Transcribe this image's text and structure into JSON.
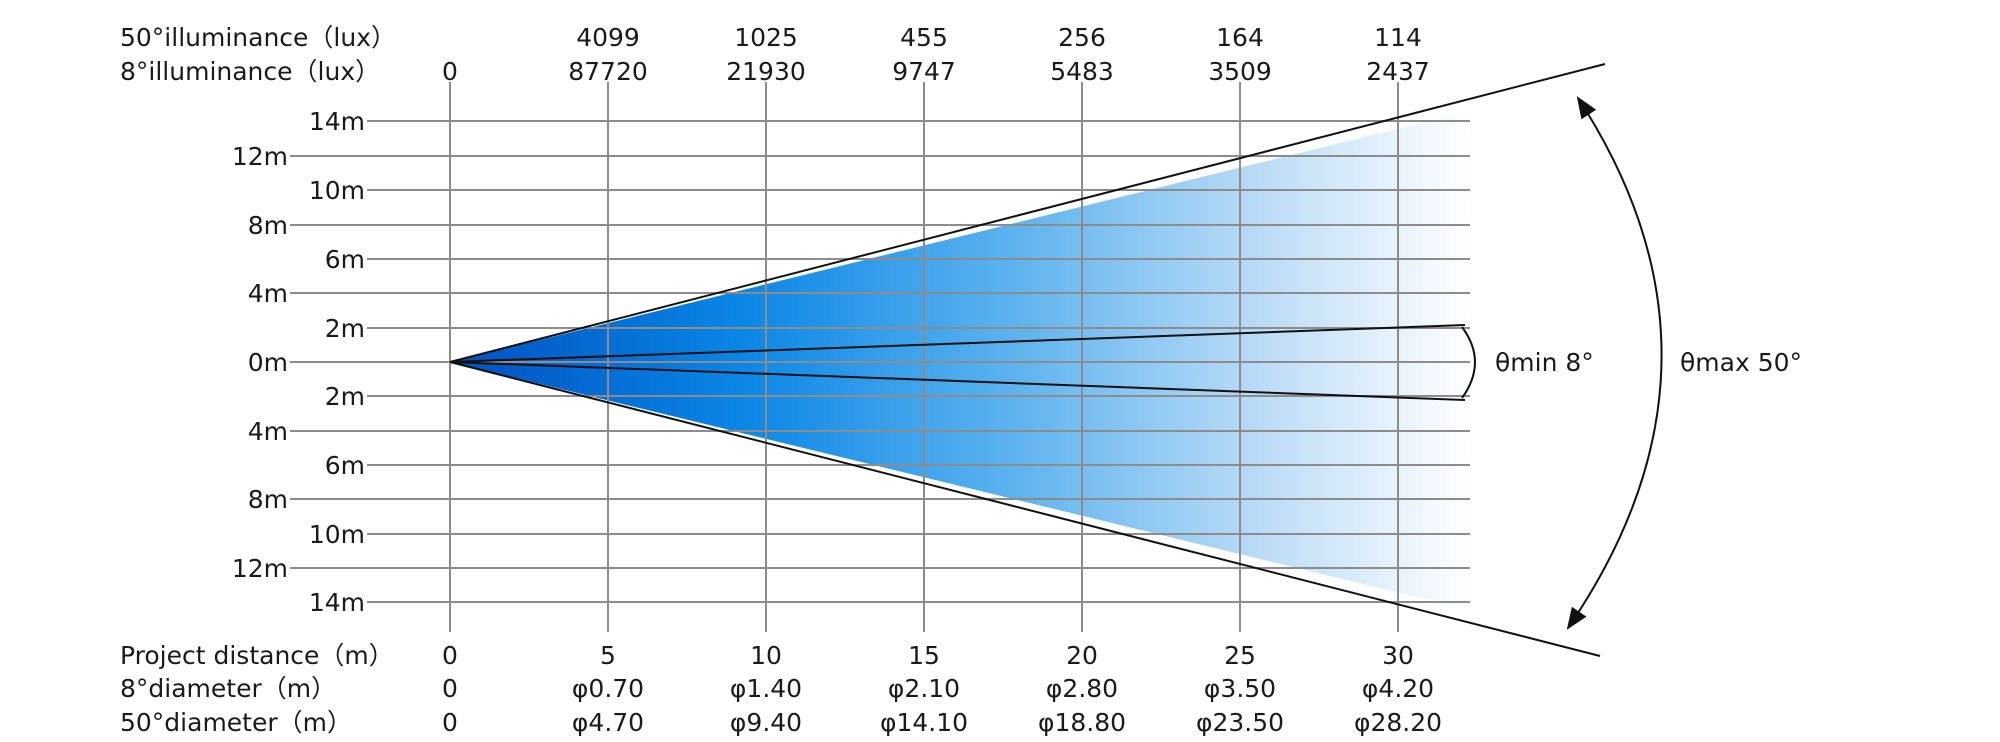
{
  "header": {
    "row_50_label": "50°illuminance（lux）",
    "row_8_label": "8°illuminance（lux）",
    "illum_50": [
      "4099",
      "1025",
      "455",
      "256",
      "164",
      "114"
    ],
    "illum_8": [
      "0",
      "87720",
      "21930",
      "9747",
      "5483",
      "3509",
      "2437"
    ]
  },
  "footer": {
    "distance_label": "Project distance（m）",
    "diam_8_label": "8°diameter（m）",
    "diam_50_label": "50°diameter（m）",
    "distances": [
      "0",
      "5",
      "10",
      "15",
      "20",
      "25",
      "30"
    ],
    "diam_8": [
      "0",
      "φ0.70",
      "φ1.40",
      "φ2.10",
      "φ2.80",
      "φ3.50",
      "φ4.20"
    ],
    "diam_50": [
      "0",
      "φ4.70",
      "φ9.40",
      "φ14.10",
      "φ18.80",
      "φ23.50",
      "φ28.20"
    ]
  },
  "y_axis": {
    "inner_labels": [
      "14m",
      "10m",
      "6m",
      "2m",
      "2m",
      "6m",
      "10m",
      "14m"
    ],
    "outer_labels": [
      "12m",
      "8m",
      "4m",
      "0m",
      "4m",
      "8m",
      "12m"
    ]
  },
  "angles": {
    "min_label": "θmin 8°",
    "max_label": "θmax 50°"
  },
  "colors": {
    "beam_near": "#0057c8",
    "beam_mid": "#1a8fe8",
    "beam_far": "#ffffff",
    "grid": "#8c8c8c"
  }
}
